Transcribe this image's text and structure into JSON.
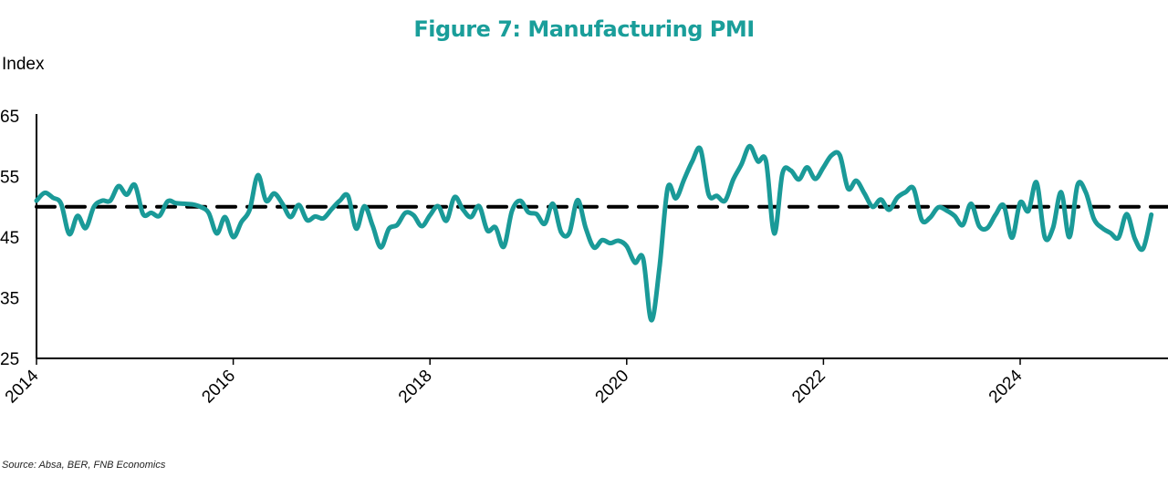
{
  "chart_data": {
    "type": "line",
    "title": "Figure 7: Manufacturing PMI",
    "ylabel": "Index",
    "xlabel": "",
    "source": "Source: Absa, BER, FNB Economics",
    "ylim": [
      25,
      65
    ],
    "yticks": [
      "65",
      "55",
      "45",
      "35",
      "25"
    ],
    "ytick_values": [
      65,
      55,
      45,
      35,
      25
    ],
    "xticks": [
      "2014",
      "2016",
      "2018",
      "2020",
      "2022",
      "2024"
    ],
    "xtick_values": [
      2014,
      2016,
      2018,
      2020,
      2022,
      2024
    ],
    "x_start": "2014-01",
    "frequency": "monthly",
    "reference_line": 50,
    "line_color": "#1a9a98",
    "title_color": "#1a9e9a",
    "series": [
      {
        "name": "Manufacturing PMI",
        "values": [
          51,
          52.3,
          51.5,
          50.5,
          45.5,
          48.5,
          46.5,
          50,
          51,
          51,
          53.4,
          52,
          53.6,
          48.8,
          49,
          48.5,
          50.9,
          50.6,
          50.5,
          50.4,
          50,
          49,
          45.6,
          48.3,
          45,
          47.5,
          49.5,
          55.2,
          51,
          52.2,
          50.5,
          48.3,
          50.3,
          47.8,
          48.4,
          48.1,
          49.6,
          51,
          51.8,
          46.4,
          50.1,
          46.9,
          43.3,
          46.4,
          47,
          49,
          48.6,
          46.8,
          48.6,
          50.1,
          47.7,
          51.6,
          49.6,
          48.3,
          50.1,
          46.1,
          46.6,
          43.4,
          49.3,
          51,
          49.1,
          48.8,
          47.2,
          50.5,
          45.8,
          45.7,
          51.1,
          46.5,
          43.3,
          44.5,
          44,
          44.4,
          43.5,
          40.8,
          41.5,
          31.3,
          40,
          53.1,
          51.4,
          54.5,
          57.5,
          59.5,
          52,
          51.8,
          51,
          54.5,
          57,
          60,
          57.5,
          57.5,
          45.6,
          55.5,
          56,
          54.5,
          56.5,
          54.6,
          56.5,
          58.5,
          58.5,
          53,
          54.3,
          52.2,
          50,
          51.2,
          49.5,
          51.5,
          52.4,
          53,
          47.8,
          48.2,
          49.9,
          49.4,
          48.5,
          47,
          50.5,
          46.8,
          46.5,
          48.7,
          50.2,
          44.9,
          50.7,
          49.3,
          54,
          45,
          46.5,
          52.4,
          45,
          53.6,
          52.4,
          48,
          46.5,
          45.7,
          44.9,
          48.8,
          44.7,
          43.1,
          48.7
        ]
      }
    ]
  }
}
